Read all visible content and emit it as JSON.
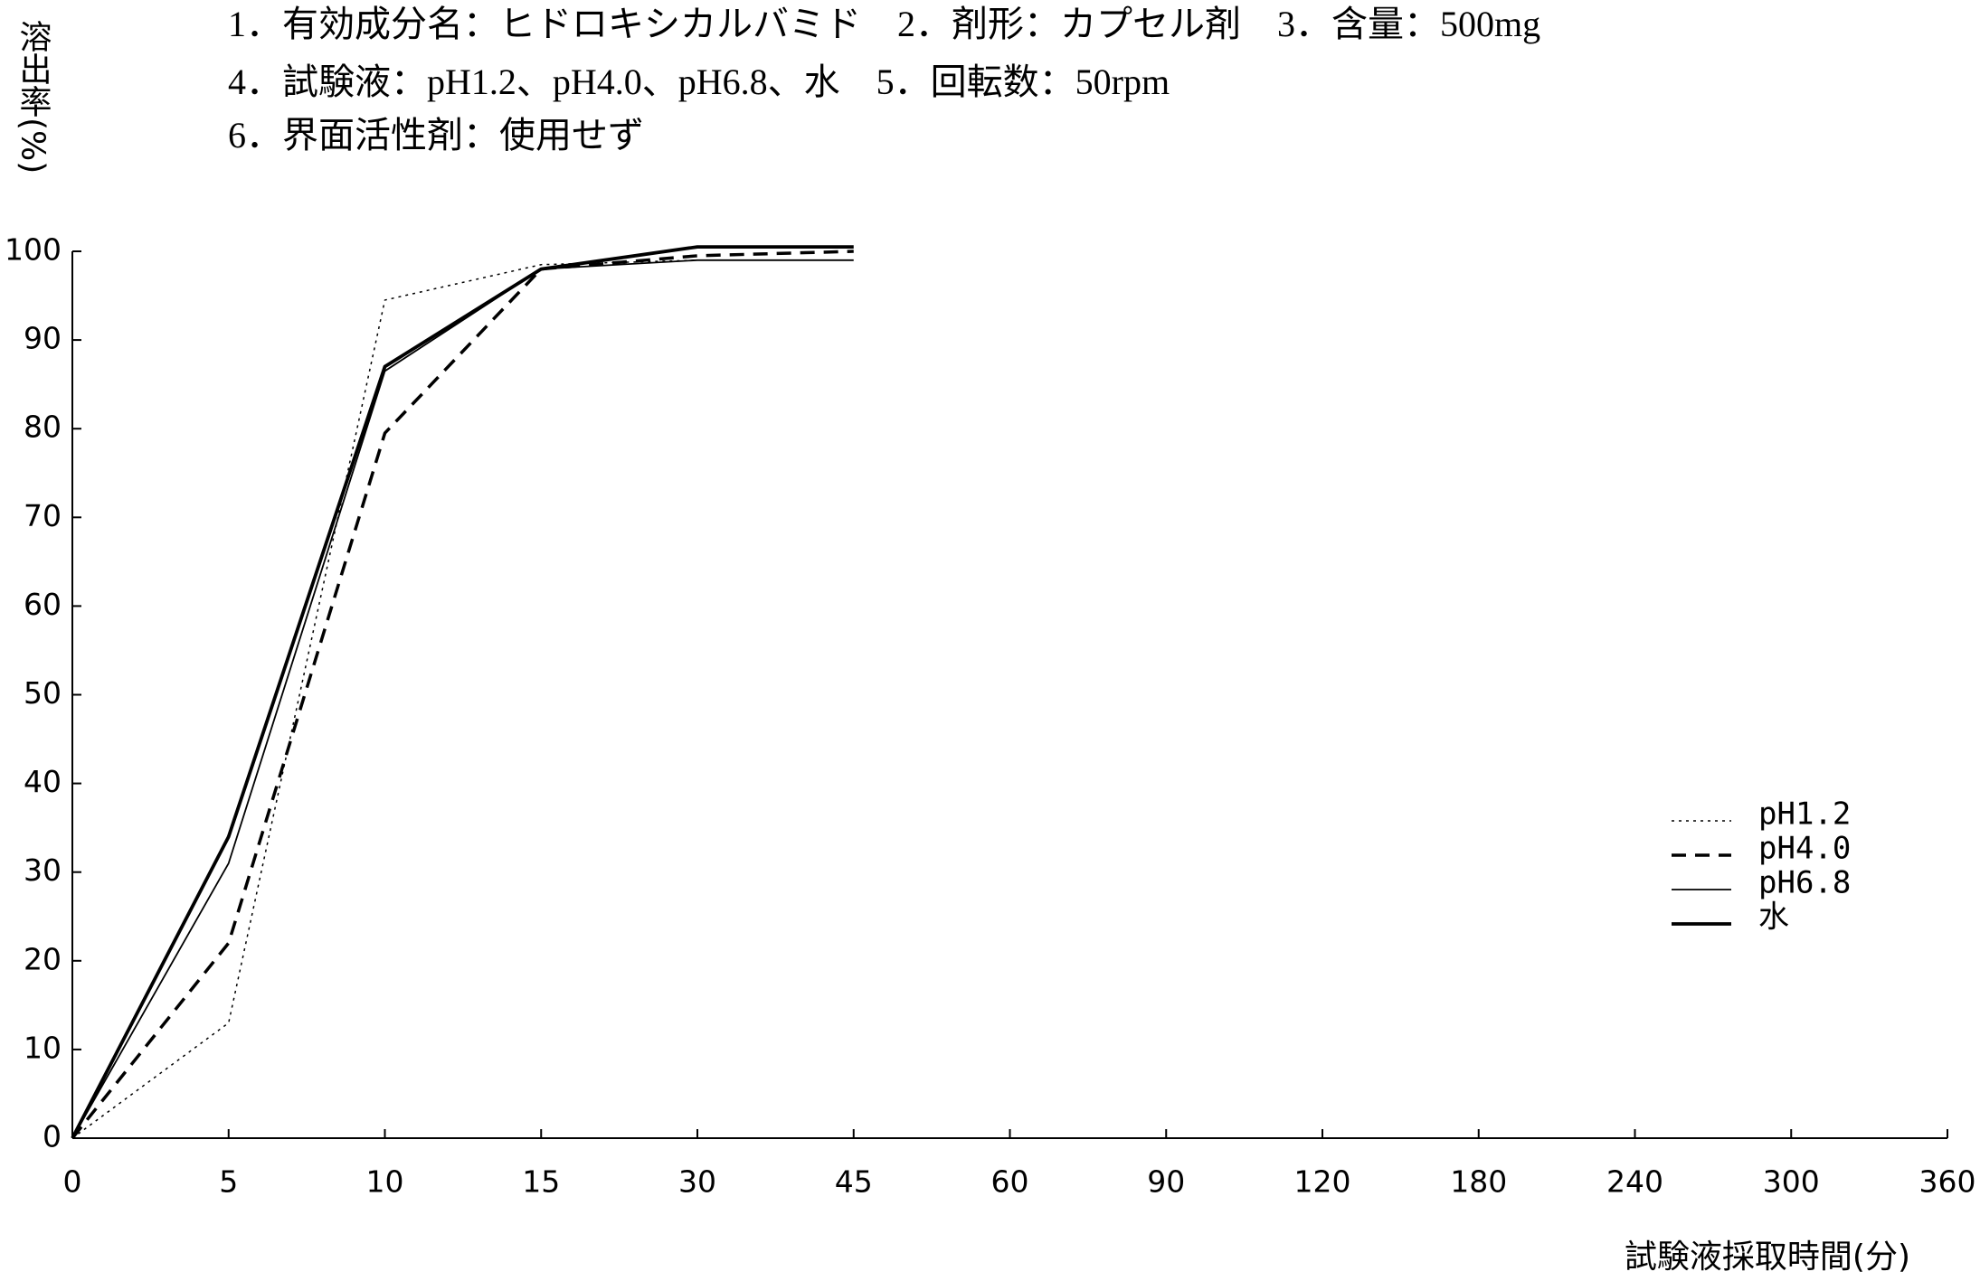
{
  "chart_data": {
    "type": "line",
    "header": [
      "1．有効成分名：ヒドロキシカルバミド　2．剤形：カプセル剤　3．含量：500mg",
      "4．試験液：pH1.2、pH4.0、pH6.8、水　5．回転数：50rpm",
      "6．界面活性剤：使用せず"
    ],
    "ylabel": "溶出率(%)",
    "xlabel": "試験液採取時間(分)",
    "categories": [
      "0",
      "5",
      "10",
      "15",
      "30",
      "45",
      "60",
      "90",
      "120",
      "180",
      "240",
      "300",
      "360"
    ],
    "series": [
      {
        "name": "pH1.2",
        "color": "#000000",
        "style": "dotted",
        "width": 1.5,
        "values": [
          0,
          13,
          94.5,
          98.5,
          99,
          99,
          null,
          null,
          null,
          null,
          null,
          null,
          null
        ]
      },
      {
        "name": "pH4.0",
        "color": "#000000",
        "style": "dashed",
        "width": 3.5,
        "values": [
          0,
          22,
          79.5,
          98,
          99.5,
          100,
          null,
          null,
          null,
          null,
          null,
          null,
          null
        ]
      },
      {
        "name": "pH6.8",
        "color": "#000000",
        "style": "solid",
        "width": 1.8,
        "values": [
          0,
          31,
          86.5,
          98,
          99,
          99,
          null,
          null,
          null,
          null,
          null,
          null,
          null
        ]
      },
      {
        "name": "水",
        "color": "#000000",
        "style": "solid",
        "width": 3.8,
        "values": [
          0,
          34,
          87,
          98,
          100.5,
          100.5,
          null,
          null,
          null,
          null,
          null,
          null,
          null
        ]
      }
    ],
    "ylim": [
      0,
      100
    ],
    "yticks": [
      0,
      10,
      20,
      30,
      40,
      50,
      60,
      70,
      80,
      90,
      100
    ],
    "legend": "right",
    "grid": false
  }
}
